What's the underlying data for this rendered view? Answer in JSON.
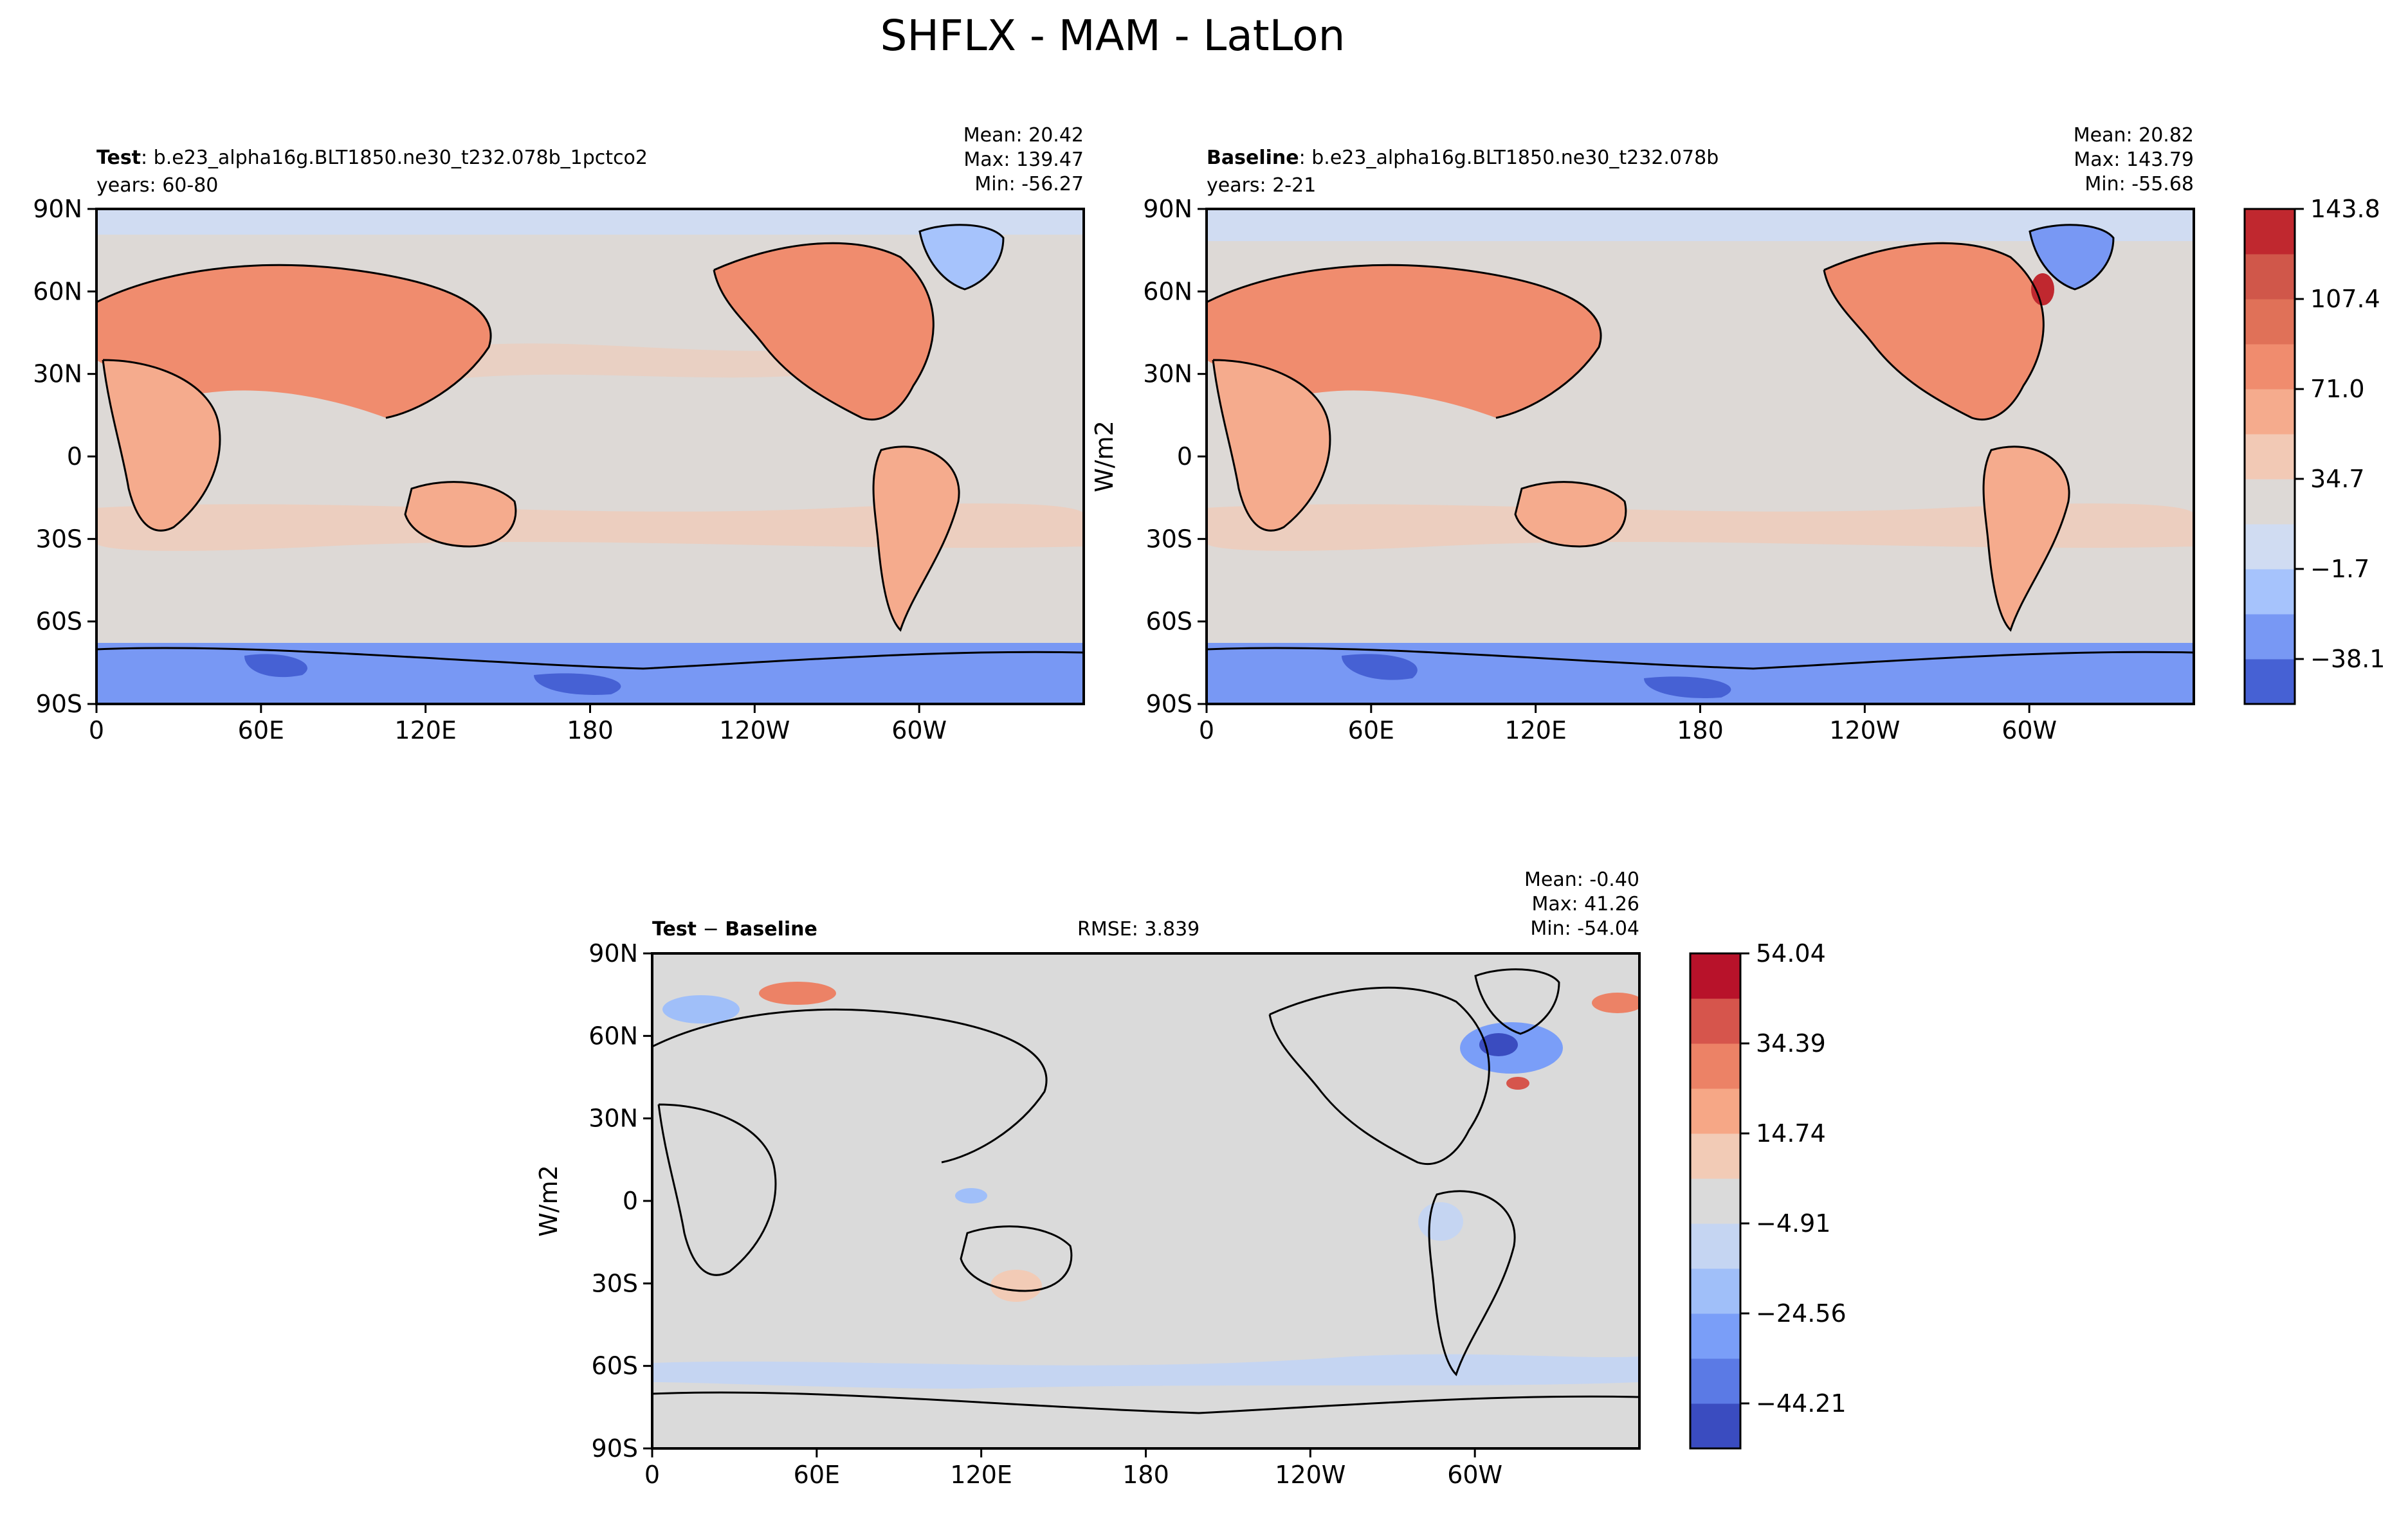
{
  "figure": {
    "suptitle": "SHFLX - MAM - LatLon"
  },
  "colors": {
    "ocean_base": "#ddd9d6",
    "diff_base": "#dadada",
    "top_scale": [
      "#4661d4",
      "#7898f4",
      "#a6c3fc",
      "#d0dcf2",
      "#ddd9d6",
      "#f2c9b5",
      "#f5ab8d",
      "#f08c6e",
      "#e07158",
      "#d0574a",
      "#c0282f"
    ],
    "diff_scale": [
      "#3a4cc0",
      "#5b7ae5",
      "#7a9ef8",
      "#a0bff9",
      "#c5d5f2",
      "#dadada",
      "#f2cbb6",
      "#f6a786",
      "#ec8266",
      "#d6554c",
      "#b8122a"
    ]
  },
  "chart_data": [
    {
      "id": "test",
      "type": "heatmap",
      "title_bold": "Test",
      "title_rest": ": b.e23_alpha16g.BLT1850.ne30_t232.078b_1pctco2",
      "subtitle": "years: 60-80",
      "stats": [
        "Mean: 20.42",
        "Max: 139.47",
        "Min: -56.27"
      ],
      "xticks": [
        "0",
        "60E",
        "120E",
        "180",
        "120W",
        "60W"
      ],
      "yticks": [
        "90N",
        "60N",
        "30N",
        "0",
        "30S",
        "60S",
        "90S"
      ],
      "xlim": [
        0,
        360
      ],
      "ylim": [
        -90,
        90
      ],
      "units": "W/m2",
      "mean": 20.42,
      "max": 139.47,
      "min": -56.27
    },
    {
      "id": "baseline",
      "type": "heatmap",
      "title_bold": "Baseline",
      "title_rest": ": b.e23_alpha16g.BLT1850.ne30_t232.078b",
      "subtitle": "years: 2-21",
      "stats": [
        "Mean: 20.82",
        "Max: 143.79",
        "Min: -55.68"
      ],
      "xticks": [
        "0",
        "60E",
        "120E",
        "180",
        "120W",
        "60W"
      ],
      "yticks": [
        "90N",
        "60N",
        "30N",
        "0",
        "30S",
        "60S",
        "90S"
      ],
      "xlim": [
        0,
        360
      ],
      "ylim": [
        -90,
        90
      ],
      "ylabel": "W/m2",
      "units": "W/m2",
      "mean": 20.82,
      "max": 143.79,
      "min": -55.68,
      "colorbar": {
        "min": -56.27,
        "max": 143.79,
        "levels": 11,
        "ticks": [
          "143.8",
          "107.4",
          "71.0",
          "34.7",
          "−1.7",
          "−38.1"
        ]
      }
    },
    {
      "id": "diff",
      "type": "heatmap",
      "title_bold": "Test",
      "title_mid": " − ",
      "title_bold2": "Baseline",
      "rmse": "RMSE: 3.839",
      "stats": [
        "Mean: -0.40",
        "Max: 41.26",
        "Min: -54.04"
      ],
      "xticks": [
        "0",
        "60E",
        "120E",
        "180",
        "120W",
        "60W"
      ],
      "yticks": [
        "90N",
        "60N",
        "30N",
        "0",
        "30S",
        "60S",
        "90S"
      ],
      "xlim": [
        0,
        360
      ],
      "ylim": [
        -90,
        90
      ],
      "ylabel": "W/m2",
      "units": "W/m2",
      "mean": -0.4,
      "max": 41.26,
      "min": -54.04,
      "colorbar": {
        "min": -54.04,
        "max": 54.04,
        "levels": 11,
        "ticks": [
          "54.04",
          "34.39",
          "14.74",
          "−4.91",
          "−24.56",
          "−44.21"
        ]
      }
    }
  ]
}
